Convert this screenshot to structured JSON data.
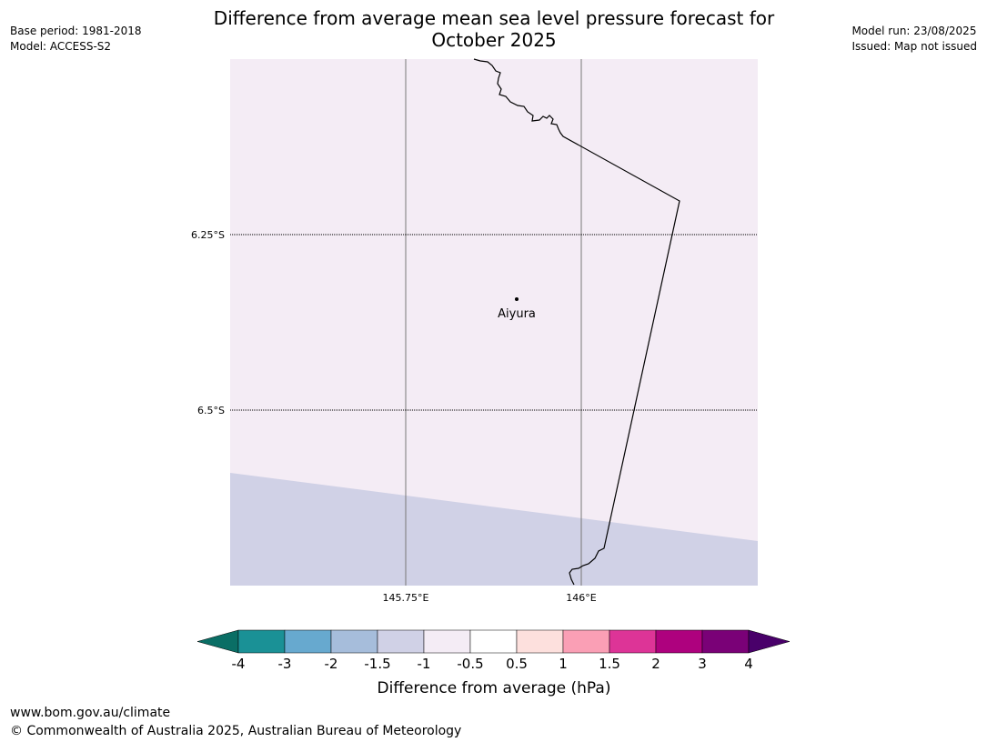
{
  "header": {
    "title": "Difference from average mean sea level pressure forecast for October 2025",
    "base_period": "Base period: 1981-2018",
    "model": "Model: ACCESS-S2",
    "model_run": "Model run: 23/08/2025",
    "issued": "Issued: Map not issued"
  },
  "map": {
    "graticule": {
      "longitudes": [
        {
          "value": 145.75,
          "label": "145.75°E"
        },
        {
          "value": 146.0,
          "label": "146°E"
        }
      ],
      "latitudes": [
        {
          "value": -6.25,
          "label": "6.25°S"
        },
        {
          "value": -6.5,
          "label": "6.5°S"
        }
      ]
    },
    "place": {
      "name": "Aiyura",
      "lon": 145.904,
      "lat": -6.336
    },
    "fill_colors": {
      "background_class": "#f4ecf5",
      "lower_class": "#d0d1e6"
    }
  },
  "colorbar": {
    "label": "Difference from average (hPa)",
    "ticks": [
      "-4",
      "-3",
      "-2",
      "-1.5",
      "-1",
      "-0.5",
      "0.5",
      "1",
      "1.5",
      "2",
      "3",
      "4"
    ],
    "colors": [
      "#1a9196",
      "#67a9cf",
      "#a6bddb",
      "#d0d1e6",
      "#f4ecf5",
      "#ffffff",
      "#fde0dd",
      "#fa9fb5",
      "#dd3497",
      "#ae017e",
      "#7a0177"
    ],
    "under_color": "#0a6e65",
    "over_color": "#49006a"
  },
  "footer": {
    "website": "www.bom.gov.au/climate",
    "copyright": "© Commonwealth of Australia 2025, Australian Bureau of Meteorology"
  }
}
